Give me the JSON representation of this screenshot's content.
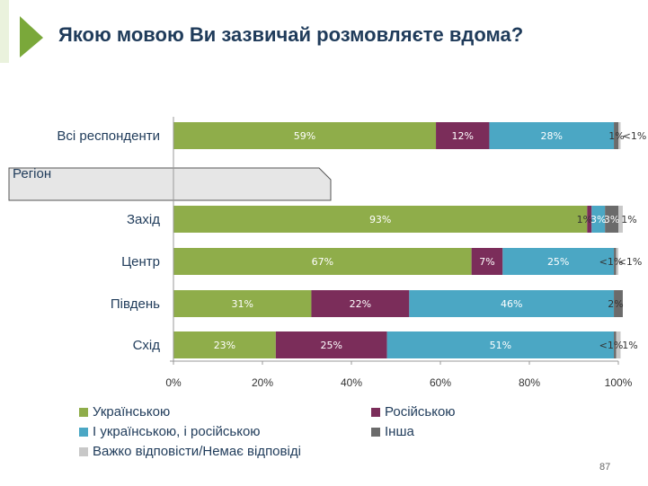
{
  "title": "Якою мовою Ви зазвичай розмовляєте вдома?",
  "region_header": "Регіон",
  "page_number": "87",
  "colors": {
    "ukrainian": "#8fad4a",
    "russian": "#7b2d5a",
    "both": "#4ba7c4",
    "other": "#6b6b6b",
    "hard_to_say": "#c8c8c8",
    "title": "#1f3b5a",
    "accent_arrow": "#7aa83a"
  },
  "chart_data": {
    "type": "bar",
    "orientation": "horizontal",
    "stacked": true,
    "categories": [
      "Всі респонденти",
      "Захід",
      "Центр",
      "Південь",
      "Схід"
    ],
    "series": [
      {
        "name": "Українською",
        "color": "#8fad4a",
        "values": [
          59,
          93,
          67,
          31,
          23
        ],
        "labels": [
          "59%",
          "93%",
          "67%",
          "31%",
          "23%"
        ]
      },
      {
        "name": "Російською",
        "color": "#7b2d5a",
        "values": [
          12,
          1,
          7,
          22,
          25
        ],
        "labels": [
          "12%",
          "1%",
          "7%",
          "22%",
          "25%"
        ]
      },
      {
        "name": "І українською, і російською",
        "color": "#4ba7c4",
        "values": [
          28,
          3,
          25,
          46,
          51
        ],
        "labels": [
          "28%",
          "3%",
          "25%",
          "46%",
          "51%"
        ]
      },
      {
        "name": "Інша",
        "color": "#6b6b6b",
        "values": [
          1,
          3,
          0.5,
          2,
          0.5
        ],
        "labels": [
          "1%",
          "3%",
          "<1%",
          "2%",
          "<1%"
        ]
      },
      {
        "name": "Важко відповісти/Немає відповіді",
        "color": "#c8c8c8",
        "values": [
          0.5,
          1,
          0.5,
          0,
          1
        ],
        "labels": [
          "<1%",
          "1%",
          "<1%",
          "",
          "1%"
        ]
      }
    ],
    "xlim": [
      0,
      100
    ],
    "xticks": [
      "0%",
      "20%",
      "40%",
      "60%",
      "80%",
      "100%"
    ],
    "legend_position": "bottom",
    "grid": false
  }
}
